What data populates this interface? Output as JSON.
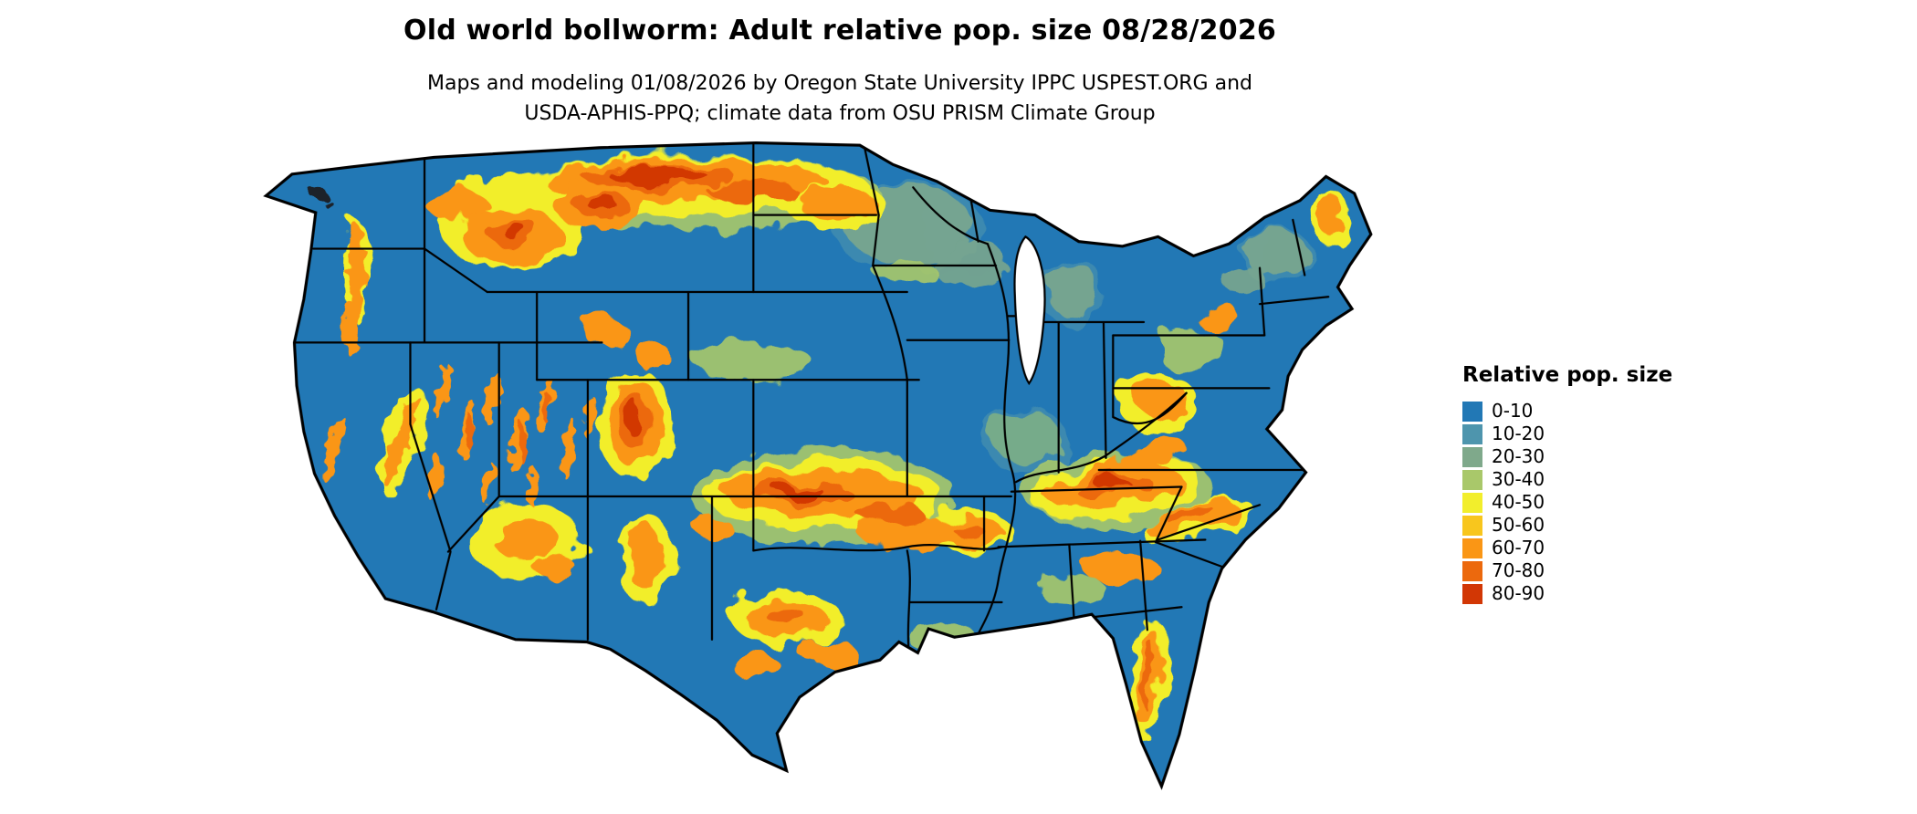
{
  "header": {
    "title": "Old world bollworm: Adult relative pop. size 08/28/2026",
    "subtitle_line1": "Maps and modeling 01/08/2026 by Oregon State University IPPC USPEST.ORG and",
    "subtitle_line2": "USDA-APHIS-PPQ; climate data from OSU PRISM Climate Group"
  },
  "legend": {
    "title": "Relative pop. size",
    "items": [
      {
        "label": "0-10",
        "color": "#2278b5"
      },
      {
        "label": "10-20",
        "color": "#4e95ad"
      },
      {
        "label": "20-30",
        "color": "#7fa98b"
      },
      {
        "label": "30-40",
        "color": "#a9c86a"
      },
      {
        "label": "40-50",
        "color": "#f2ee2c"
      },
      {
        "label": "50-60",
        "color": "#f8c61d"
      },
      {
        "label": "60-70",
        "color": "#fa9615"
      },
      {
        "label": "70-80",
        "color": "#ec690d"
      },
      {
        "label": "80-90",
        "color": "#d23705"
      }
    ]
  },
  "map": {
    "base_color": "#2278b5",
    "border_color": "#000000"
  }
}
